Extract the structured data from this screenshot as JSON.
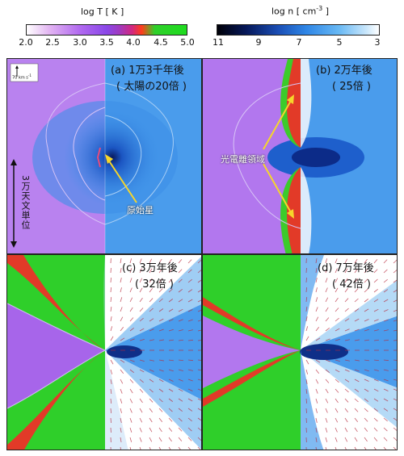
{
  "colorbars": {
    "temperature": {
      "title": "log T  [ K ]",
      "ticks": [
        "2.0",
        "2.5",
        "3.0",
        "3.5",
        "4.0",
        "4.5",
        "5.0"
      ],
      "colors": [
        "#ffffff",
        "#e3b6f2",
        "#b26af0",
        "#8a47e8",
        "#d2287f",
        "#ff3d1a",
        "#2fcf2a",
        "#1fdc1f"
      ]
    },
    "density": {
      "title": "log n  [ cm",
      "title_sup": "-3",
      "title_end": "]",
      "ticks": [
        "11",
        "9",
        "7",
        "5",
        "3"
      ],
      "colors": [
        "#000008",
        "#06185a",
        "#1b4fb6",
        "#2f86e6",
        "#67b8f4",
        "#ffffff"
      ]
    }
  },
  "scale_arrow": "70 km s",
  "scale_arrow_sup": "-1",
  "panels": [
    {
      "label_line1": "(a) 1万3千年後",
      "label_line2": "( 太陽の20倍 )"
    },
    {
      "label_line1": "(b) 2万年後",
      "label_line2": "( 25倍 )"
    },
    {
      "label_line1": "(c) 3万年後",
      "label_line2": "( 32倍 )"
    },
    {
      "label_line1": "(d) 7万年後",
      "label_line2": "( 42倍 )"
    }
  ],
  "annotations": {
    "protostar": "原始星",
    "photoionized_region": "光電離領域",
    "scale_bar": "3万天文単位"
  },
  "colors": {
    "purple": "#a765ea",
    "blue": "#3d94ea",
    "green": "#2fcf2a",
    "red": "#e23a28",
    "dark_blue": "#0f2f88",
    "arrow_yellow": "#f6d62b"
  }
}
